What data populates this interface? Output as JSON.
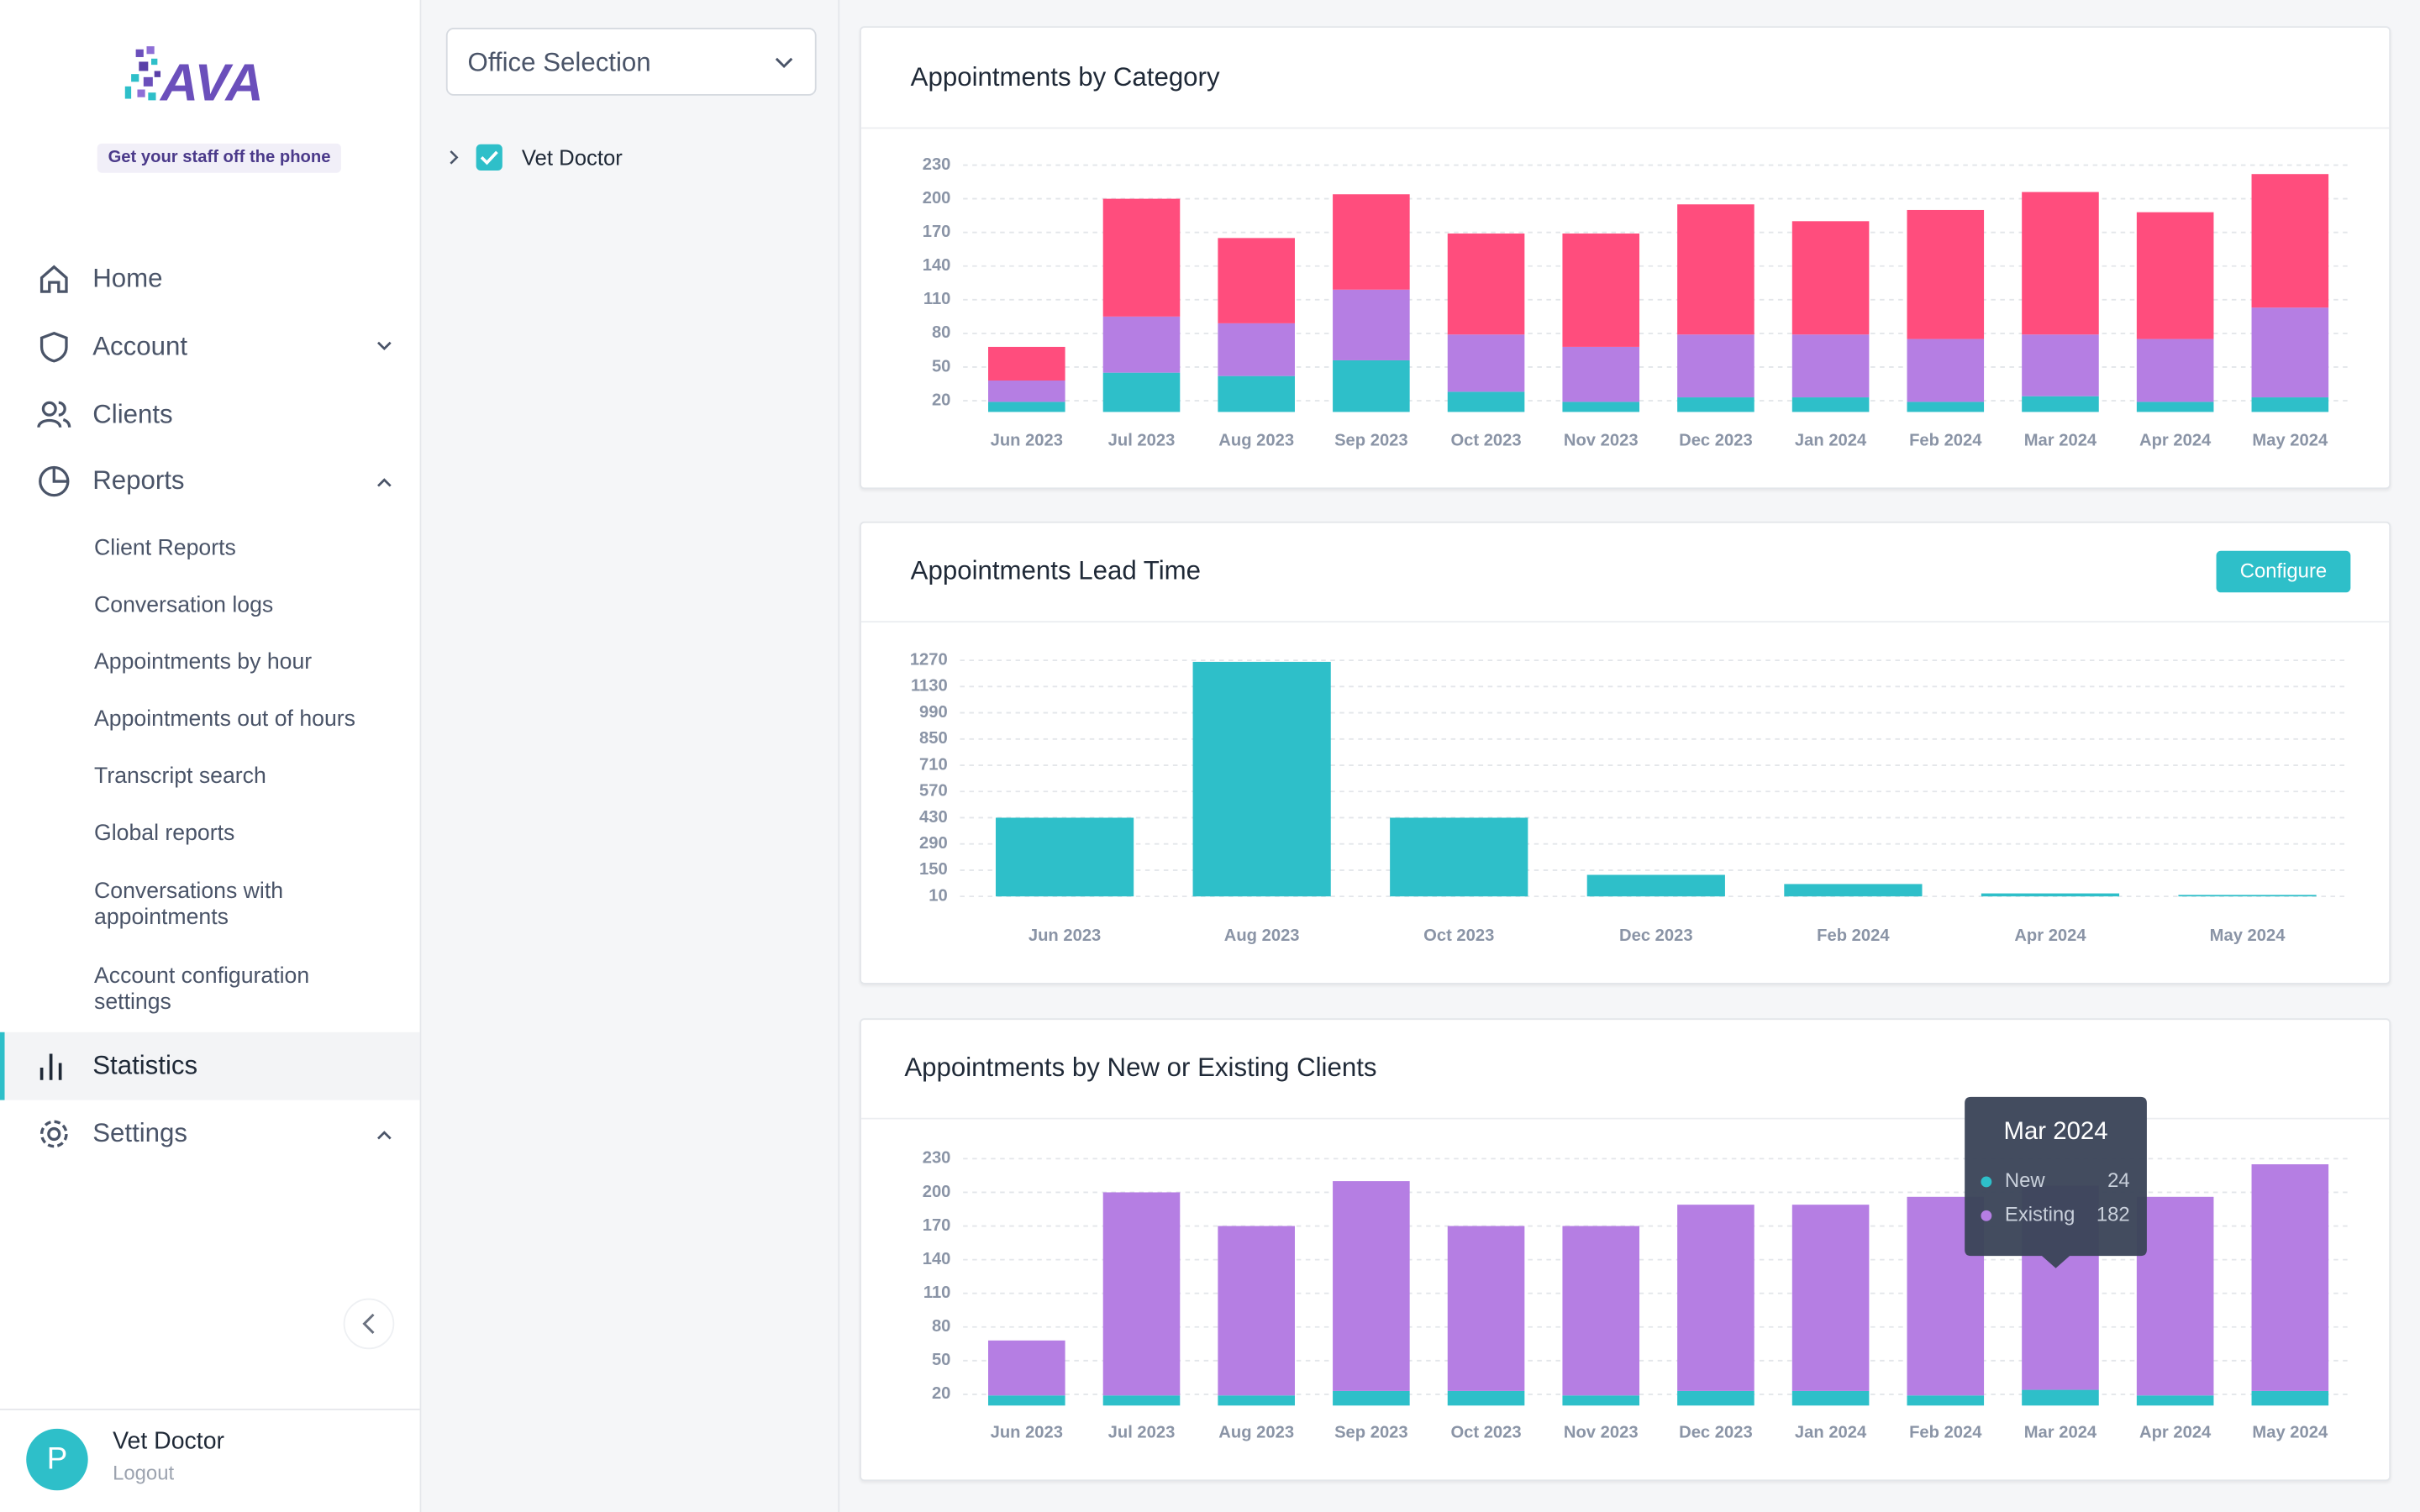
{
  "sidebar": {
    "logo": "AVA",
    "tagline": "Get your staff off the phone",
    "nav": [
      "Home",
      "Account",
      "Clients",
      "Reports"
    ],
    "submenu": [
      "Client Reports",
      "Conversation logs",
      "Appointments by hour",
      "Appointments out of hours",
      "Transcript search",
      "Global reports",
      "Conversations with appointments",
      "Account configuration settings"
    ],
    "nav_bottom": [
      "Statistics",
      "Settings"
    ],
    "user": {
      "initial": "P",
      "name": "Vet Doctor",
      "action": "Logout"
    }
  },
  "office_panel": {
    "select": "Office Selection",
    "tree": [
      "Vet Doctor"
    ]
  },
  "chart_data": [
    {
      "type": "stacked_bar",
      "title": "Appointments by Category",
      "categories": [
        "Jun 2023",
        "Jul 2023",
        "Aug 2023",
        "Sep 2023",
        "Oct 2023",
        "Nov 2023",
        "Dec 2023",
        "Jan 2024",
        "Feb 2024",
        "Mar 2024",
        "Apr 2024",
        "May 2024"
      ],
      "series": [
        {
          "color": "#2ebfc9",
          "values": [
            19,
            45,
            42,
            56,
            28,
            19,
            23,
            23,
            19,
            24,
            19,
            23
          ]
        },
        {
          "color": "#b57ee3",
          "values": [
            19,
            50,
            47,
            63,
            51,
            49,
            56,
            56,
            56,
            55,
            56,
            80
          ]
        },
        {
          "color": "#ff4d7d",
          "values": [
            30,
            105,
            76,
            85,
            90,
            101,
            116,
            101,
            115,
            127,
            113,
            119
          ]
        }
      ],
      "ylim": [
        10,
        230
      ],
      "yticks": [
        20,
        50,
        80,
        110,
        140,
        170,
        200,
        230
      ],
      "grid": true
    },
    {
      "type": "bar",
      "title": "Appointments  Lead Time",
      "button": "Configure",
      "categories": [
        "Jun 2023",
        "Aug 2023",
        "Oct 2023",
        "Dec 2023",
        "Feb 2024",
        "Apr 2024",
        "May 2024"
      ],
      "values": [
        430,
        1262,
        430,
        125,
        76,
        26,
        18
      ],
      "color": "#2ebfc9",
      "ylim": [
        10,
        1270
      ],
      "yticks": [
        10,
        150,
        290,
        430,
        570,
        710,
        850,
        990,
        1130,
        1270
      ],
      "grid": true
    },
    {
      "type": "stacked_bar",
      "title": "Appointments by New or Existing Clients",
      "categories": [
        "Jun 2023",
        "Jul 2023",
        "Aug 2023",
        "Sep 2023",
        "Oct 2023",
        "Nov 2023",
        "Dec 2023",
        "Jan 2024",
        "Feb 2024",
        "Mar 2024",
        "Apr 2024",
        "May 2024"
      ],
      "series": [
        {
          "name": "New",
          "color": "#2ebfc9",
          "values": [
            19,
            19,
            19,
            23,
            23,
            19,
            23,
            23,
            19,
            24,
            19,
            23
          ]
        },
        {
          "name": "Existing",
          "color": "#b57ee3",
          "values": [
            49,
            181,
            151,
            187,
            147,
            151,
            166,
            166,
            177,
            182,
            177,
            202
          ]
        }
      ],
      "ylim": [
        10,
        230
      ],
      "yticks": [
        20,
        50,
        80,
        110,
        140,
        170,
        200,
        230
      ],
      "grid": true
    }
  ]
}
